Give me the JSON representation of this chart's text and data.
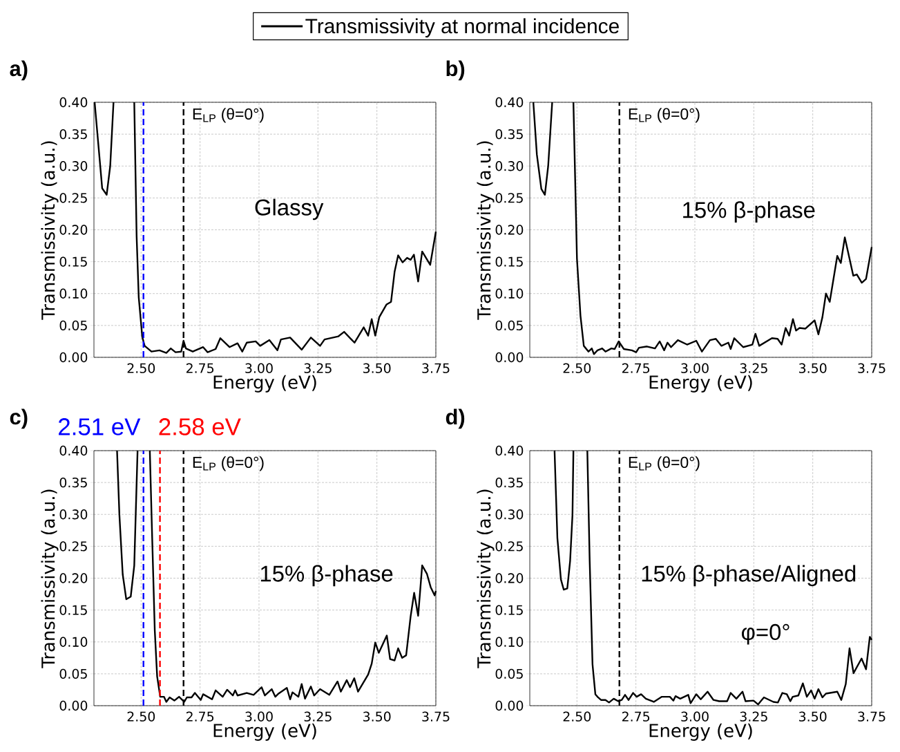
{
  "chart_data": [
    {
      "type": "line",
      "title": "a)",
      "xlabel": "Energy (eV)",
      "ylabel": "Transmissivity (a.u.)",
      "grid": true,
      "legend": "top",
      "xlim": [
        2.3,
        3.75
      ],
      "ylim": [
        0,
        0.4
      ],
      "xticks": [
        {
          "value": 2.5,
          "label": "2.50"
        },
        {
          "value": 2.75,
          "label": "2.75"
        },
        {
          "value": 3.0,
          "label": "3.00"
        },
        {
          "value": 3.25,
          "label": "3.25"
        },
        {
          "value": 3.5,
          "label": "3.50"
        },
        {
          "value": 3.75,
          "label": "3.75"
        }
      ],
      "yticks": [
        {
          "value": 0,
          "label": "0.00"
        },
        {
          "value": 0.05,
          "label": "0.05"
        },
        {
          "value": 0.1,
          "label": "0.10"
        },
        {
          "value": 0.15,
          "label": "0.15"
        },
        {
          "value": 0.2,
          "label": "0.20"
        },
        {
          "value": 0.25,
          "label": "0.25"
        },
        {
          "value": 0.3,
          "label": "0.30"
        },
        {
          "value": 0.35,
          "label": "0.35"
        },
        {
          "value": 0.4,
          "label": "0.40"
        }
      ],
      "ref_lines": [
        {
          "axis": "x",
          "value": 2.51,
          "color": "#0000ff",
          "line_style": "dashed"
        },
        {
          "axis": "x",
          "value": 2.68,
          "color": "#000000",
          "line_style": "dashed"
        }
      ],
      "annotations": [
        "Glassy",
        "E$_{LP}$ (θ=0°)"
      ],
      "series": [
        {
          "name": "Transmissivity at normal incidence",
          "color": "#000000",
          "x": [
            2.303,
            2.335,
            2.354,
            2.369,
            2.383,
            2.43,
            2.471,
            2.481,
            2.49,
            2.505,
            2.515,
            2.544,
            2.578,
            2.607,
            2.626,
            2.646,
            2.67,
            2.68,
            2.69,
            2.719,
            2.763,
            2.782,
            2.816,
            2.836,
            2.875,
            2.909,
            2.929,
            2.948,
            2.986,
            3.005,
            3.044,
            3.078,
            3.093,
            3.132,
            3.181,
            3.22,
            3.259,
            3.278,
            3.337,
            3.361,
            3.405,
            3.444,
            3.463,
            3.478,
            3.493,
            3.51,
            3.541,
            3.56,
            3.575,
            3.59,
            3.609,
            3.628,
            3.643,
            3.657,
            3.675,
            3.692,
            3.726,
            3.75
          ],
          "values": [
            0.4,
            0.265,
            0.255,
            0.3,
            0.4,
            null,
            0.4,
            0.19,
            0.094,
            0.032,
            0.018,
            0.009,
            0.011,
            0.007,
            0.014,
            0.008,
            0.009,
            0.026,
            0.014,
            0.009,
            0.016,
            0.008,
            0.013,
            0.03,
            0.016,
            0.022,
            0.009,
            0.023,
            0.025,
            0.018,
            0.027,
            0.011,
            0.028,
            0.031,
            0.012,
            0.031,
            0.018,
            0.028,
            0.033,
            0.04,
            0.023,
            0.047,
            0.034,
            0.06,
            0.034,
            0.063,
            0.083,
            0.087,
            0.134,
            0.16,
            0.149,
            0.156,
            0.153,
            0.161,
            0.119,
            0.166,
            0.145,
            0.197
          ]
        }
      ]
    },
    {
      "type": "line",
      "title": "b)",
      "xlabel": "Energy (eV)",
      "ylabel": "Transmissivity (a.u.)",
      "grid": true,
      "xlim": [
        2.3,
        3.75
      ],
      "ylim": [
        0,
        0.4
      ],
      "xticks": [
        {
          "value": 2.5,
          "label": "2.50"
        },
        {
          "value": 2.75,
          "label": "2.75"
        },
        {
          "value": 3.0,
          "label": "3.00"
        },
        {
          "value": 3.25,
          "label": "3.25"
        },
        {
          "value": 3.5,
          "label": "3.50"
        },
        {
          "value": 3.75,
          "label": "3.75"
        }
      ],
      "yticks": [
        {
          "value": 0,
          "label": "0.00"
        },
        {
          "value": 0.05,
          "label": "0.05"
        },
        {
          "value": 0.1,
          "label": "0.10"
        },
        {
          "value": 0.15,
          "label": "0.15"
        },
        {
          "value": 0.2,
          "label": "0.20"
        },
        {
          "value": 0.25,
          "label": "0.25"
        },
        {
          "value": 0.3,
          "label": "0.30"
        },
        {
          "value": 0.35,
          "label": "0.35"
        },
        {
          "value": 0.4,
          "label": "0.40"
        }
      ],
      "ref_lines": [
        {
          "axis": "x",
          "value": 2.68,
          "color": "#000000",
          "line_style": "dashed"
        }
      ],
      "annotations": [
        "15% β-phase",
        "E$_{LP}$ (θ=0°)"
      ],
      "series": [
        {
          "color": "#000000",
          "x": [
            2.315,
            2.33,
            2.349,
            2.364,
            2.378,
            2.395,
            2.44,
            2.485,
            2.5,
            2.515,
            2.529,
            2.549,
            2.563,
            2.572,
            2.587,
            2.607,
            2.621,
            2.646,
            2.66,
            2.677,
            2.699,
            2.733,
            2.751,
            2.763,
            2.797,
            2.831,
            2.851,
            2.87,
            2.884,
            2.899,
            2.928,
            2.967,
            3.006,
            3.03,
            3.064,
            3.089,
            3.113,
            3.142,
            3.152,
            3.167,
            3.205,
            3.244,
            3.257,
            3.273,
            3.327,
            3.351,
            3.368,
            3.385,
            3.4,
            3.416,
            3.429,
            3.444,
            3.469,
            3.508,
            3.524,
            3.541,
            3.556,
            3.572,
            3.604,
            3.619,
            3.636,
            3.672,
            3.687,
            3.708,
            3.726,
            3.75
          ],
          "values": [
            0.4,
            0.318,
            0.264,
            0.255,
            0.3,
            0.4,
            null,
            0.4,
            0.155,
            0.065,
            0.018,
            0.009,
            0.014,
            0.005,
            0.011,
            0.014,
            0.009,
            0.014,
            0.013,
            0.025,
            0.013,
            0.011,
            0.008,
            0.015,
            0.017,
            0.014,
            0.025,
            0.011,
            0.023,
            0.016,
            0.027,
            0.02,
            0.026,
            0.009,
            0.027,
            0.029,
            0.018,
            0.023,
            0.013,
            0.03,
            0.016,
            0.02,
            0.037,
            0.018,
            0.03,
            0.029,
            0.02,
            0.046,
            0.034,
            0.06,
            0.042,
            0.046,
            0.045,
            0.058,
            0.036,
            0.063,
            0.1,
            0.087,
            0.159,
            0.148,
            0.188,
            0.128,
            0.13,
            0.117,
            0.123,
            0.173
          ]
        }
      ]
    },
    {
      "type": "line",
      "title": "c)",
      "xlabel": "Energy (eV)",
      "ylabel": "Transmissivity (a.u.)",
      "grid": true,
      "xlim": [
        2.3,
        3.75
      ],
      "ylim": [
        0,
        0.4
      ],
      "xticks": [
        {
          "value": 2.5,
          "label": "2.50"
        },
        {
          "value": 2.75,
          "label": "2.75"
        },
        {
          "value": 3.0,
          "label": "3.00"
        },
        {
          "value": 3.25,
          "label": "3.25"
        },
        {
          "value": 3.5,
          "label": "3.50"
        },
        {
          "value": 3.75,
          "label": "3.75"
        }
      ],
      "yticks": [
        {
          "value": 0,
          "label": "0.00"
        },
        {
          "value": 0.05,
          "label": "0.05"
        },
        {
          "value": 0.1,
          "label": "0.10"
        },
        {
          "value": 0.15,
          "label": "0.15"
        },
        {
          "value": 0.2,
          "label": "0.20"
        },
        {
          "value": 0.25,
          "label": "0.25"
        },
        {
          "value": 0.3,
          "label": "0.30"
        },
        {
          "value": 0.35,
          "label": "0.35"
        },
        {
          "value": 0.4,
          "label": "0.40"
        }
      ],
      "ref_lines": [
        {
          "axis": "x",
          "value": 2.51,
          "label": "2.51 eV",
          "color": "#0000ff",
          "line_style": "dashed"
        },
        {
          "axis": "x",
          "value": 2.58,
          "label": "2.58 eV",
          "color": "#ff0000",
          "line_style": "dashed"
        },
        {
          "axis": "x",
          "value": 2.68,
          "color": "#000000",
          "line_style": "dashed"
        }
      ],
      "annotations": [
        "15% β-phase",
        "E$_{LP}$ (θ=0°)"
      ],
      "series": [
        {
          "color": "#000000",
          "x": [
            2.398,
            2.408,
            2.422,
            2.437,
            2.456,
            2.471,
            2.485,
            2.51,
            2.537,
            2.547,
            2.558,
            2.568,
            2.581,
            2.597,
            2.607,
            2.621,
            2.641,
            2.661,
            2.683,
            2.694,
            2.714,
            2.728,
            2.753,
            2.763,
            2.801,
            2.816,
            2.846,
            2.865,
            2.889,
            2.899,
            2.909,
            2.948,
            2.977,
            3.011,
            3.025,
            3.054,
            3.069,
            3.083,
            3.118,
            3.132,
            3.142,
            3.167,
            3.181,
            3.195,
            3.22,
            3.234,
            3.259,
            3.298,
            3.333,
            3.347,
            3.372,
            3.386,
            3.404,
            3.42,
            3.463,
            3.478,
            3.493,
            3.508,
            3.542,
            3.556,
            3.575,
            3.59,
            3.607,
            3.624,
            3.643,
            3.658,
            3.675,
            3.692,
            3.712,
            3.728,
            3.745,
            3.75
          ],
          "values": [
            0.4,
            0.299,
            0.206,
            0.167,
            0.171,
            0.22,
            0.4,
            null,
            0.4,
            0.263,
            0.118,
            0.046,
            0.014,
            0.014,
            0.006,
            0.013,
            0.008,
            0.014,
            0.006,
            0.013,
            0.013,
            0.02,
            0.009,
            0.018,
            0.01,
            0.024,
            0.014,
            0.025,
            0.016,
            0.024,
            0.016,
            0.02,
            0.017,
            0.029,
            0.016,
            0.026,
            0.014,
            0.019,
            0.028,
            0.01,
            0.021,
            0.014,
            0.034,
            0.011,
            0.03,
            0.016,
            0.026,
            0.017,
            0.038,
            0.022,
            0.04,
            0.029,
            0.043,
            0.022,
            0.049,
            0.066,
            0.099,
            0.083,
            0.11,
            0.073,
            0.071,
            0.09,
            0.075,
            0.079,
            0.14,
            0.177,
            0.141,
            0.22,
            0.207,
            0.186,
            0.173,
            0.18
          ]
        }
      ]
    },
    {
      "type": "line",
      "title": "d)",
      "xlabel": "Energy (eV)",
      "ylabel": "Transmissivity (a.u.)",
      "grid": true,
      "xlim": [
        2.3,
        3.75
      ],
      "ylim": [
        0,
        0.4
      ],
      "xticks": [
        {
          "value": 2.5,
          "label": "2.50"
        },
        {
          "value": 2.75,
          "label": "2.75"
        },
        {
          "value": 3.0,
          "label": "3.00"
        },
        {
          "value": 3.25,
          "label": "3.25"
        },
        {
          "value": 3.5,
          "label": "3.50"
        },
        {
          "value": 3.75,
          "label": "3.75"
        }
      ],
      "yticks": [
        {
          "value": 0,
          "label": "0.00"
        },
        {
          "value": 0.05,
          "label": "0.05"
        },
        {
          "value": 0.1,
          "label": "0.10"
        },
        {
          "value": 0.15,
          "label": "0.15"
        },
        {
          "value": 0.2,
          "label": "0.20"
        },
        {
          "value": 0.25,
          "label": "0.25"
        },
        {
          "value": 0.3,
          "label": "0.30"
        },
        {
          "value": 0.35,
          "label": "0.35"
        },
        {
          "value": 0.4,
          "label": "0.40"
        }
      ],
      "ref_lines": [
        {
          "axis": "x",
          "value": 2.68,
          "color": "#000000",
          "line_style": "dashed"
        }
      ],
      "annotations": [
        "15% β-phase/Aligned",
        "φ=0°",
        "E$_{LP}$ (θ=0°)"
      ],
      "series": [
        {
          "color": "#000000",
          "x": [
            2.405,
            2.417,
            2.432,
            2.444,
            2.459,
            2.471,
            2.481,
            2.485,
            2.51,
            2.544,
            2.554,
            2.566,
            2.578,
            2.587,
            2.602,
            2.621,
            2.636,
            2.656,
            2.675,
            2.69,
            2.704,
            2.719,
            2.738,
            2.753,
            2.772,
            2.792,
            2.826,
            2.86,
            2.894,
            2.909,
            2.918,
            2.938,
            2.972,
            2.982,
            3.006,
            3.025,
            3.054,
            3.079,
            3.103,
            3.137,
            3.152,
            3.176,
            3.202,
            3.215,
            3.249,
            3.268,
            3.293,
            3.333,
            3.352,
            3.371,
            3.39,
            3.405,
            3.415,
            3.439,
            3.458,
            3.475,
            3.493,
            3.508,
            3.524,
            3.541,
            3.556,
            3.604,
            3.621,
            3.64,
            3.656,
            3.673,
            3.707,
            3.726,
            3.742,
            3.75
          ],
          "values": [
            0.4,
            0.263,
            0.198,
            0.182,
            0.184,
            0.227,
            0.299,
            0.4,
            null,
            0.4,
            0.227,
            0.065,
            0.018,
            0.014,
            0.009,
            0.009,
            0.005,
            0.011,
            0.007,
            0.009,
            0.017,
            0.009,
            0.02,
            0.014,
            0.018,
            0.011,
            0.006,
            0.014,
            0.014,
            0.008,
            0.015,
            0.011,
            0.017,
            0.004,
            0.018,
            0.01,
            0.022,
            0.009,
            0.007,
            0.007,
            0.02,
            0.011,
            0.022,
            0.007,
            0.008,
            0.002,
            0.013,
            0.006,
            0.005,
            0.02,
            0.018,
            0.007,
            0.014,
            0.016,
            0.035,
            0.014,
            0.024,
            0.011,
            0.026,
            0.013,
            0.019,
            0.022,
            0.009,
            0.034,
            0.09,
            0.051,
            0.074,
            0.057,
            0.108,
            0.103
          ]
        }
      ]
    }
  ]
}
